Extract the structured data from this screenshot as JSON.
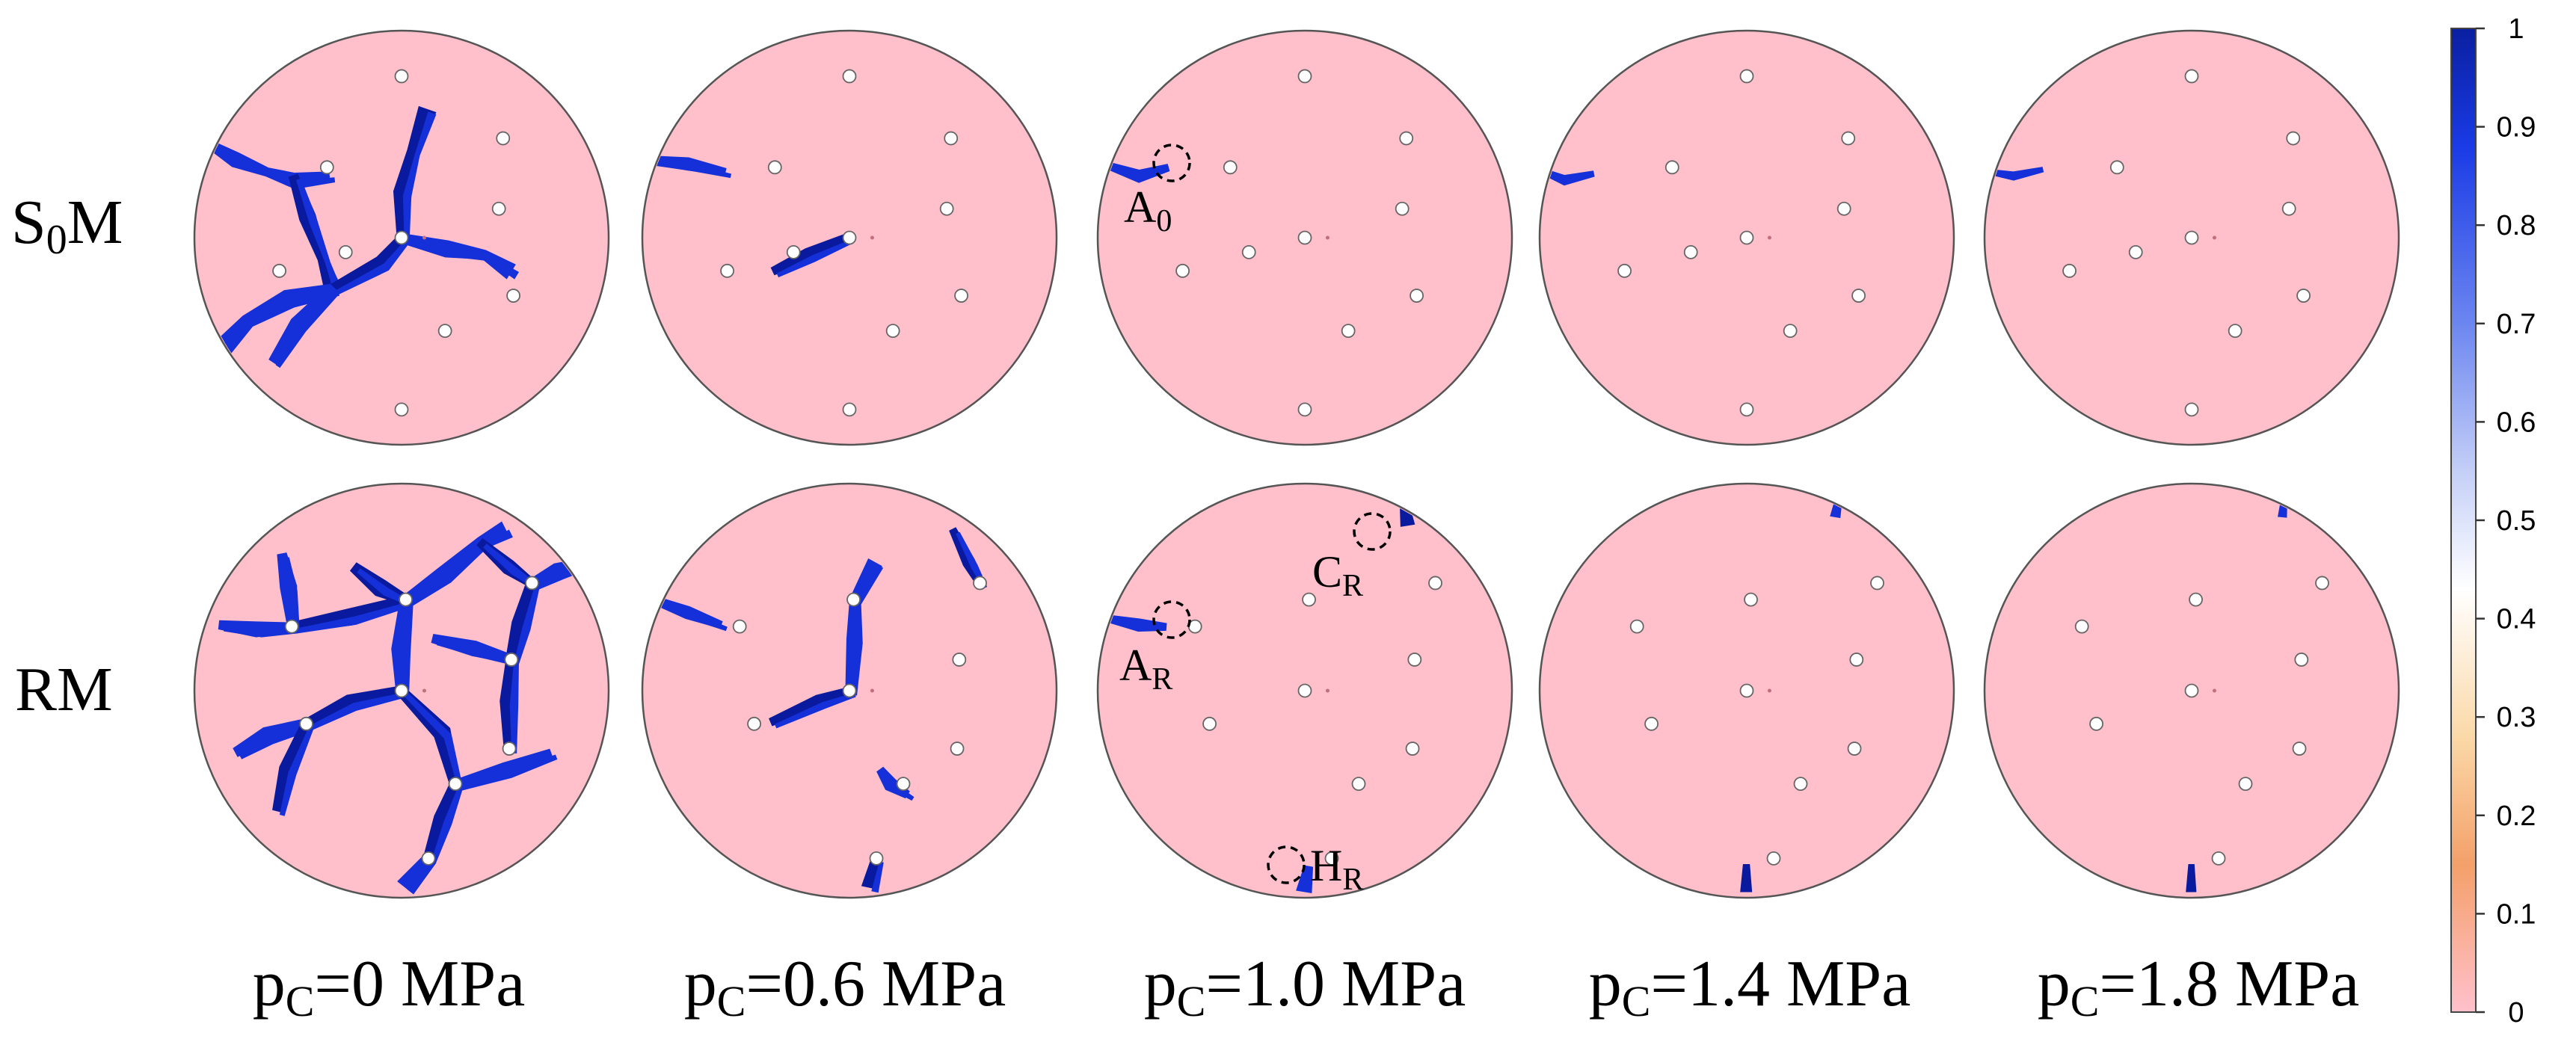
{
  "row_labels": [
    {
      "main": "S",
      "sub": "0",
      "tail": "M"
    },
    {
      "main": "RM",
      "sub": "",
      "tail": ""
    }
  ],
  "column_labels": [
    {
      "p": "p",
      "sub": "C",
      "rest": "=0 MPa"
    },
    {
      "p": "p",
      "sub": "C",
      "rest": "=0.6 MPa"
    },
    {
      "p": "p",
      "sub": "C",
      "rest": "=1.0 MPa"
    },
    {
      "p": "p",
      "sub": "C",
      "rest": "=1.4 MPa"
    },
    {
      "p": "p",
      "sub": "C",
      "rest": "=1.8 MPa"
    }
  ],
  "annotations": [
    {
      "main": "A",
      "sub": "0"
    },
    {
      "main": "C",
      "sub": "R"
    },
    {
      "main": "A",
      "sub": "R"
    },
    {
      "main": "H",
      "sub": "R"
    }
  ],
  "colorbar": {
    "ticks": [
      "1",
      "0.9",
      "0.8",
      "0.7",
      "0.6",
      "0.5",
      "0.4",
      "0.3",
      "0.2",
      "0.1",
      "0"
    ],
    "colors": [
      "#0a1fa0",
      "#1a3be6",
      "#6c86f0",
      "#c4cff7",
      "#ffffff",
      "#fbd9a8",
      "#f4a06a",
      "#ffc0cb"
    ]
  },
  "colors": {
    "disk_fill": "#ffc0cb",
    "crack": "#1530d8",
    "crack_dark": "#0a1a9e",
    "outline": "#555555"
  }
}
